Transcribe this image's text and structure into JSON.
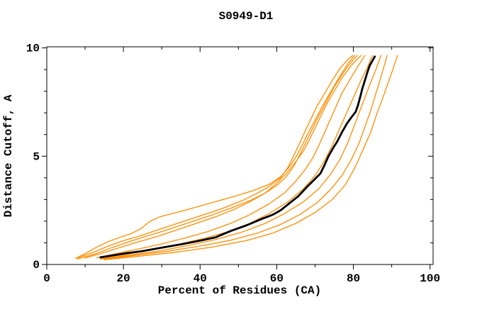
{
  "title": "S0949-D1",
  "colors": {
    "background": "#ffffff",
    "axis": "#000000",
    "orange": "#ff8c00",
    "black": "#000000"
  },
  "axes": {
    "x": {
      "label": "Percent of Residues (CA)",
      "range": [
        0,
        100.8
      ],
      "major_ticks": [
        0,
        20,
        40,
        60,
        80,
        100
      ],
      "minor_ticks": [
        10,
        30,
        50,
        70,
        90
      ],
      "tick_labels": [
        "0",
        "20",
        "40",
        "60",
        "80",
        "100"
      ]
    },
    "y": {
      "label": "Distance Cutoff, A",
      "range": [
        0,
        10.05
      ],
      "major_ticks": [
        0,
        5,
        10
      ],
      "minor_ticks": [
        1,
        2,
        3,
        4,
        6,
        7,
        8,
        9
      ],
      "tick_labels": [
        "0",
        "5",
        "10"
      ]
    }
  },
  "chart_data": {
    "type": "line",
    "title": "S0949-D1",
    "xlabel": "Percent of Residues (CA)",
    "ylabel": "Distance Cutoff, A",
    "xlim": [
      0,
      100
    ],
    "ylim": [
      0,
      10
    ],
    "grid": false,
    "legend": "none",
    "description": "Percent of CA residues under each distance cutoff; thin orange lines are individual models, thick black line is the highlighted model.",
    "series": [
      {
        "name": "orange-1",
        "color": "orange",
        "width": 1.3,
        "points": [
          [
            7.5,
            0.28
          ],
          [
            10,
            0.5
          ],
          [
            13,
            0.8
          ],
          [
            16,
            1.05
          ],
          [
            19,
            1.25
          ],
          [
            22,
            1.42
          ],
          [
            24.5,
            1.65
          ],
          [
            27,
            2.0
          ],
          [
            29.5,
            2.2
          ],
          [
            32,
            2.32
          ],
          [
            36,
            2.5
          ],
          [
            41,
            2.75
          ],
          [
            46,
            3.0
          ],
          [
            50,
            3.2
          ],
          [
            54,
            3.42
          ],
          [
            58,
            3.7
          ],
          [
            61,
            4.05
          ],
          [
            63,
            4.45
          ],
          [
            65,
            4.95
          ],
          [
            66.5,
            5.45
          ],
          [
            68,
            6.0
          ],
          [
            69.5,
            6.5
          ],
          [
            71,
            7.0
          ],
          [
            72.5,
            7.5
          ],
          [
            74.5,
            8.1
          ],
          [
            76.5,
            8.7
          ],
          [
            78.5,
            9.25
          ],
          [
            80.3,
            9.65
          ]
        ]
      },
      {
        "name": "orange-2",
        "color": "orange",
        "width": 1.3,
        "points": [
          [
            8,
            0.3
          ],
          [
            12,
            0.55
          ],
          [
            16,
            0.85
          ],
          [
            20,
            1.1
          ],
          [
            24,
            1.3
          ],
          [
            29,
            1.6
          ],
          [
            35,
            1.95
          ],
          [
            41,
            2.3
          ],
          [
            46,
            2.6
          ],
          [
            51,
            2.95
          ],
          [
            55,
            3.3
          ],
          [
            58,
            3.6
          ],
          [
            61,
            4.0
          ],
          [
            63,
            4.5
          ],
          [
            64.5,
            5.05
          ],
          [
            66,
            5.6
          ],
          [
            67.5,
            6.2
          ],
          [
            69,
            6.75
          ],
          [
            70.5,
            7.3
          ],
          [
            72.5,
            7.9
          ],
          [
            74.5,
            8.5
          ],
          [
            76.5,
            9.05
          ],
          [
            78.5,
            9.45
          ],
          [
            79.8,
            9.65
          ]
        ]
      },
      {
        "name": "orange-3",
        "color": "orange",
        "width": 1.3,
        "points": [
          [
            8,
            0.25
          ],
          [
            12.5,
            0.48
          ],
          [
            17,
            0.78
          ],
          [
            21.5,
            1.05
          ],
          [
            25.5,
            1.28
          ],
          [
            30.5,
            1.55
          ],
          [
            36.5,
            1.9
          ],
          [
            42.5,
            2.25
          ],
          [
            48,
            2.6
          ],
          [
            53,
            2.95
          ],
          [
            57,
            3.3
          ],
          [
            60,
            3.65
          ],
          [
            62.5,
            4.05
          ],
          [
            64.5,
            4.55
          ],
          [
            66,
            5.05
          ],
          [
            67.5,
            5.6
          ],
          [
            69,
            6.15
          ],
          [
            70.5,
            6.7
          ],
          [
            72,
            7.2
          ],
          [
            73.5,
            7.7
          ],
          [
            75,
            8.2
          ],
          [
            77,
            8.75
          ],
          [
            79,
            9.25
          ],
          [
            81,
            9.65
          ]
        ]
      },
      {
        "name": "orange-4",
        "color": "orange",
        "width": 1.3,
        "points": [
          [
            10,
            0.3
          ],
          [
            14,
            0.5
          ],
          [
            19,
            0.78
          ],
          [
            24,
            1.05
          ],
          [
            29,
            1.3
          ],
          [
            34,
            1.6
          ],
          [
            39,
            1.9
          ],
          [
            44,
            2.2
          ],
          [
            49,
            2.55
          ],
          [
            53,
            2.9
          ],
          [
            57,
            3.3
          ],
          [
            60,
            3.75
          ],
          [
            62.5,
            4.2
          ],
          [
            65,
            4.75
          ],
          [
            67,
            5.25
          ],
          [
            68.5,
            5.75
          ],
          [
            70,
            6.3
          ],
          [
            71.5,
            6.85
          ],
          [
            73,
            7.4
          ],
          [
            75,
            8.0
          ],
          [
            77,
            8.6
          ],
          [
            79.5,
            9.2
          ],
          [
            82,
            9.65
          ]
        ]
      },
      {
        "name": "orange-5",
        "color": "orange",
        "width": 1.3,
        "points": [
          [
            13,
            0.3
          ],
          [
            18,
            0.5
          ],
          [
            24,
            0.72
          ],
          [
            30,
            0.95
          ],
          [
            36,
            1.22
          ],
          [
            42,
            1.52
          ],
          [
            48,
            1.9
          ],
          [
            53,
            2.3
          ],
          [
            58,
            2.8
          ],
          [
            62,
            3.3
          ],
          [
            65,
            3.85
          ],
          [
            67.5,
            4.4
          ],
          [
            69.5,
            4.95
          ],
          [
            71,
            5.5
          ],
          [
            72.5,
            6.1
          ],
          [
            74,
            6.7
          ],
          [
            75.5,
            7.3
          ],
          [
            77,
            7.9
          ],
          [
            79,
            8.5
          ],
          [
            81,
            9.1
          ],
          [
            83,
            9.65
          ]
        ]
      },
      {
        "name": "orange-6",
        "color": "orange",
        "width": 1.3,
        "points": [
          [
            14,
            0.28
          ],
          [
            20,
            0.45
          ],
          [
            27,
            0.67
          ],
          [
            34,
            0.92
          ],
          [
            41,
            1.2
          ],
          [
            47,
            1.5
          ],
          [
            53,
            1.9
          ],
          [
            58,
            2.35
          ],
          [
            63,
            2.9
          ],
          [
            67,
            3.5
          ],
          [
            70,
            4.1
          ],
          [
            72.5,
            4.8
          ],
          [
            74.5,
            5.5
          ],
          [
            76,
            6.1
          ],
          [
            77.5,
            6.7
          ],
          [
            79,
            7.3
          ],
          [
            80.5,
            7.9
          ],
          [
            82,
            8.5
          ],
          [
            83.5,
            9.05
          ],
          [
            85,
            9.65
          ]
        ]
      },
      {
        "name": "orange-7",
        "color": "orange",
        "width": 1.3,
        "points": [
          [
            14,
            0.25
          ],
          [
            21,
            0.42
          ],
          [
            29,
            0.62
          ],
          [
            37,
            0.88
          ],
          [
            44,
            1.15
          ],
          [
            51,
            1.5
          ],
          [
            57,
            1.9
          ],
          [
            62,
            2.35
          ],
          [
            67,
            2.9
          ],
          [
            71,
            3.5
          ],
          [
            74,
            4.15
          ],
          [
            76.5,
            4.85
          ],
          [
            78.5,
            5.6
          ],
          [
            80,
            6.3
          ],
          [
            81.5,
            7.0
          ],
          [
            83,
            7.7
          ],
          [
            84.5,
            8.4
          ],
          [
            86,
            9.05
          ],
          [
            87.2,
            9.65
          ]
        ]
      },
      {
        "name": "orange-8",
        "color": "orange",
        "width": 1.3,
        "points": [
          [
            15,
            0.25
          ],
          [
            23,
            0.42
          ],
          [
            31,
            0.6
          ],
          [
            40,
            0.85
          ],
          [
            48,
            1.12
          ],
          [
            55,
            1.45
          ],
          [
            61,
            1.85
          ],
          [
            66,
            2.3
          ],
          [
            70.5,
            2.85
          ],
          [
            74,
            3.45
          ],
          [
            77,
            4.1
          ],
          [
            79.5,
            4.85
          ],
          [
            81.5,
            5.6
          ],
          [
            83,
            6.35
          ],
          [
            84.5,
            7.1
          ],
          [
            85.8,
            7.85
          ],
          [
            87,
            8.55
          ],
          [
            88,
            9.15
          ],
          [
            88.8,
            9.65
          ]
        ]
      },
      {
        "name": "orange-9",
        "color": "orange",
        "width": 1.3,
        "points": [
          [
            15,
            0.22
          ],
          [
            24,
            0.38
          ],
          [
            33,
            0.55
          ],
          [
            43,
            0.8
          ],
          [
            52,
            1.1
          ],
          [
            59,
            1.45
          ],
          [
            65,
            1.9
          ],
          [
            70,
            2.4
          ],
          [
            74.5,
            3.0
          ],
          [
            78,
            3.7
          ],
          [
            80.5,
            4.5
          ],
          [
            82.5,
            5.3
          ],
          [
            84.5,
            6.1
          ],
          [
            86,
            6.9
          ],
          [
            87.5,
            7.6
          ],
          [
            89,
            8.35
          ],
          [
            90.3,
            9.0
          ],
          [
            91.5,
            9.65
          ]
        ]
      },
      {
        "name": "black-main",
        "color": "black",
        "width": 2.8,
        "points": [
          [
            14,
            0.33
          ],
          [
            20,
            0.5
          ],
          [
            25,
            0.62
          ],
          [
            30,
            0.78
          ],
          [
            35,
            0.93
          ],
          [
            40,
            1.1
          ],
          [
            44,
            1.25
          ],
          [
            48,
            1.55
          ],
          [
            52,
            1.8
          ],
          [
            56,
            2.1
          ],
          [
            59,
            2.3
          ],
          [
            61,
            2.5
          ],
          [
            63.5,
            2.85
          ],
          [
            65.6,
            3.15
          ],
          [
            68,
            3.6
          ],
          [
            70,
            3.95
          ],
          [
            71.4,
            4.2
          ],
          [
            72.5,
            4.6
          ],
          [
            73.5,
            5.0
          ],
          [
            74.8,
            5.4
          ],
          [
            75.7,
            5.65
          ],
          [
            77,
            6.1
          ],
          [
            78.3,
            6.5
          ],
          [
            79.5,
            6.8
          ],
          [
            80.6,
            7.05
          ],
          [
            81.2,
            7.35
          ],
          [
            81.8,
            7.75
          ],
          [
            82.3,
            8.1
          ],
          [
            83,
            8.5
          ],
          [
            83.7,
            8.9
          ],
          [
            84.3,
            9.2
          ],
          [
            85.6,
            9.6
          ]
        ]
      }
    ]
  }
}
